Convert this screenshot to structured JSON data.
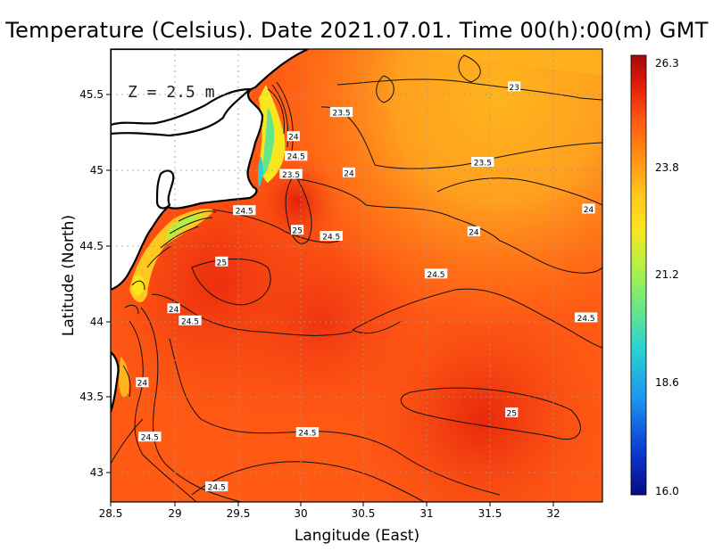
{
  "title": "Temperature (Celsius). Date 2021.07.01. Time 00(h):00(m)  GMT",
  "depth_label": "Z = 2.5 m",
  "x_axis": {
    "label": "Langitude (East)",
    "ticks": [
      "28.5",
      "29",
      "29.5",
      "30",
      "30.5",
      "31",
      "31.5",
      "32"
    ]
  },
  "y_axis": {
    "label": "Latitude (North)",
    "ticks": [
      "43",
      "43.5",
      "44",
      "44.5",
      "45",
      "45.5"
    ]
  },
  "colorbar": {
    "ticks": [
      "26.3",
      "23.8",
      "21.2",
      "18.6",
      "16.0"
    ],
    "min": 16.0,
    "max": 26.3
  },
  "contour_labels": [
    {
      "text": "23",
      "lon": 31.7,
      "lat": 45.55
    },
    {
      "text": "23.5",
      "lon": 30.33,
      "lat": 45.38
    },
    {
      "text": "23.5",
      "lon": 31.45,
      "lat": 45.05
    },
    {
      "text": "24",
      "lon": 29.95,
      "lat": 45.22
    },
    {
      "text": "24.5",
      "lon": 29.97,
      "lat": 45.09
    },
    {
      "text": "23.5",
      "lon": 29.93,
      "lat": 44.97
    },
    {
      "text": "24",
      "lon": 30.39,
      "lat": 44.98
    },
    {
      "text": "24",
      "lon": 32.29,
      "lat": 44.74
    },
    {
      "text": "24.5",
      "lon": 29.56,
      "lat": 44.73
    },
    {
      "text": "25",
      "lon": 29.98,
      "lat": 44.6
    },
    {
      "text": "24.5",
      "lon": 30.25,
      "lat": 44.56
    },
    {
      "text": "24",
      "lon": 31.38,
      "lat": 44.59
    },
    {
      "text": "25",
      "lon": 29.38,
      "lat": 44.39
    },
    {
      "text": "24.5",
      "lon": 31.08,
      "lat": 44.31
    },
    {
      "text": "24",
      "lon": 29.0,
      "lat": 44.08
    },
    {
      "text": "24.5",
      "lon": 29.13,
      "lat": 44.0
    },
    {
      "text": "24.5",
      "lon": 32.27,
      "lat": 44.02
    },
    {
      "text": "24",
      "lon": 28.75,
      "lat": 43.59
    },
    {
      "text": "25",
      "lon": 31.68,
      "lat": 43.39
    },
    {
      "text": "24.5",
      "lon": 30.06,
      "lat": 43.26
    },
    {
      "text": "24.5",
      "lon": 28.81,
      "lat": 43.23
    },
    {
      "text": "24.5",
      "lon": 29.34,
      "lat": 42.9
    }
  ],
  "colors": {
    "warm_sea": "#ff5a14",
    "hot": "#e41e0a",
    "cool": "#ffb41e",
    "colormap": [
      "#0a0a82",
      "#0a3cd2",
      "#1e96f0",
      "#28d2d2",
      "#64e68c",
      "#b4f046",
      "#fae61e",
      "#ffc81e",
      "#ff9614",
      "#ff5a14",
      "#e61e0a",
      "#a00a0a"
    ]
  }
}
